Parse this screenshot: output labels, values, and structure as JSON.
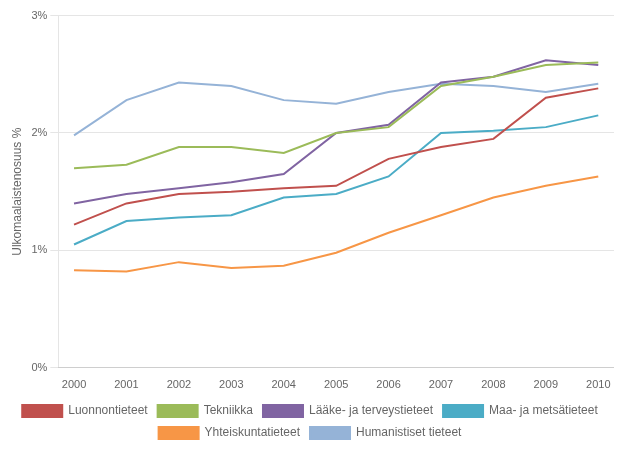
{
  "chart_data": {
    "type": "line",
    "y_label": "Ulkomaalaistenosuus %",
    "x": [
      2000,
      2001,
      2002,
      2003,
      2004,
      2005,
      2006,
      2007,
      2008,
      2009,
      2010
    ],
    "xlim": [
      1999.7,
      2010.3
    ],
    "xticks": [
      2000,
      2001,
      2002,
      2003,
      2004,
      2005,
      2006,
      2007,
      2008,
      2009,
      2010
    ],
    "ylim": [
      0.0,
      0.03
    ],
    "yticks": [
      {
        "value": 0.0,
        "label": "0%"
      },
      {
        "value": 0.01,
        "label": "1%"
      },
      {
        "value": 0.02,
        "label": "2%"
      },
      {
        "value": 0.03,
        "label": "3%"
      }
    ],
    "grid": "y",
    "legend": "bottom",
    "series": [
      {
        "name": "Luonnontieteet",
        "color": "#C0504D",
        "values": [
          0.0122,
          0.014,
          0.0148,
          0.015,
          0.0153,
          0.0155,
          0.0178,
          0.0188,
          0.0195,
          0.023,
          0.0238
        ]
      },
      {
        "name": "Tekniikka",
        "color": "#9BBB59",
        "values": [
          0.017,
          0.0173,
          0.0188,
          0.0188,
          0.0183,
          0.02,
          0.0205,
          0.024,
          0.0248,
          0.0258,
          0.026
        ]
      },
      {
        "name": "Lääke- ja terveystieteet",
        "color": "#8064A2",
        "values": [
          0.014,
          0.0148,
          0.0153,
          0.0158,
          0.0165,
          0.02,
          0.0207,
          0.0243,
          0.0248,
          0.0262,
          0.0258
        ]
      },
      {
        "name": "Maa- ja metsätieteet",
        "color": "#4BACC6",
        "values": [
          0.0105,
          0.0125,
          0.0128,
          0.013,
          0.0145,
          0.0148,
          0.0163,
          0.02,
          0.0202,
          0.0205,
          0.0215
        ]
      },
      {
        "name": "Yhteiskuntatieteet",
        "color": "#F79646",
        "values": [
          0.0083,
          0.0082,
          0.009,
          0.0085,
          0.0087,
          0.0098,
          0.0115,
          0.013,
          0.0145,
          0.0155,
          0.0163
        ]
      },
      {
        "name": "Humanistiset tieteet",
        "color": "#95B3D7",
        "values": [
          0.0198,
          0.0228,
          0.0243,
          0.024,
          0.0228,
          0.0225,
          0.0235,
          0.0242,
          0.024,
          0.0235,
          0.0242
        ]
      }
    ]
  }
}
